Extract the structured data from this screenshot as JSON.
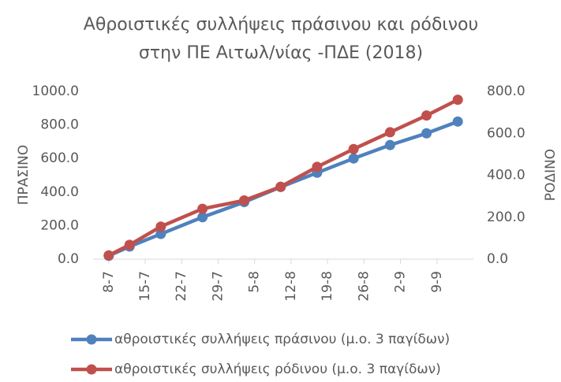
{
  "chart_data": {
    "type": "line",
    "title": [
      "Αθροιστικές συλλήψεις πράσινου και ρόδινου",
      "στην ΠΕ Αιτωλ/νίας -ΠΔΕ (2018)"
    ],
    "y_label": "ΠΡΑΣΙΝΟ",
    "y2_label": "ΡΟΔΙΝΟ",
    "x": [
      "8-7",
      "12-7",
      "18-7",
      "26-7",
      "3-8",
      "10-8",
      "17-8",
      "24-8",
      "31-8",
      "7-9",
      "13-9"
    ],
    "xlim": [
      "5-7",
      "16-9"
    ],
    "xticks": [
      "8-7",
      "15-7",
      "22-7",
      "29-7",
      "5-8",
      "12-8",
      "19-8",
      "26-8",
      "2-9",
      "9-9"
    ],
    "series": [
      {
        "name": "αθροιστικές συλλήψεις πράσινου (μ.ο. 3 παγίδων)",
        "color": "#4f81bd",
        "values": [
          20,
          75,
          150,
          250,
          340,
          430,
          515,
          600,
          680,
          750,
          820
        ]
      },
      {
        "name": "αθροιστικές συλλήψεις ρόδινου (μ.ο. 3 παγίδων)",
        "color": "#c0504d",
        "axis": "y2",
        "values": [
          18,
          68,
          155,
          240,
          280,
          345,
          440,
          525,
          605,
          685,
          760
        ]
      }
    ],
    "ylim": [
      0,
      1000
    ],
    "yticks": [
      {
        "value": 0,
        "label": "0.0"
      },
      {
        "value": 200,
        "label": "200.0"
      },
      {
        "value": 400,
        "label": "400.0"
      },
      {
        "value": 600,
        "label": "600.0"
      },
      {
        "value": 800,
        "label": "800.0"
      },
      {
        "value": 1000,
        "label": "1000.0"
      }
    ],
    "y2lim": [
      0,
      800
    ],
    "y2ticks": [
      {
        "value": 0,
        "label": "0.0"
      },
      {
        "value": 200,
        "label": "200.0"
      },
      {
        "value": 400,
        "label": "400.0"
      },
      {
        "value": 600,
        "label": "600.0"
      },
      {
        "value": 800,
        "label": "800.0"
      }
    ],
    "grid": false,
    "legend": "bottom"
  }
}
